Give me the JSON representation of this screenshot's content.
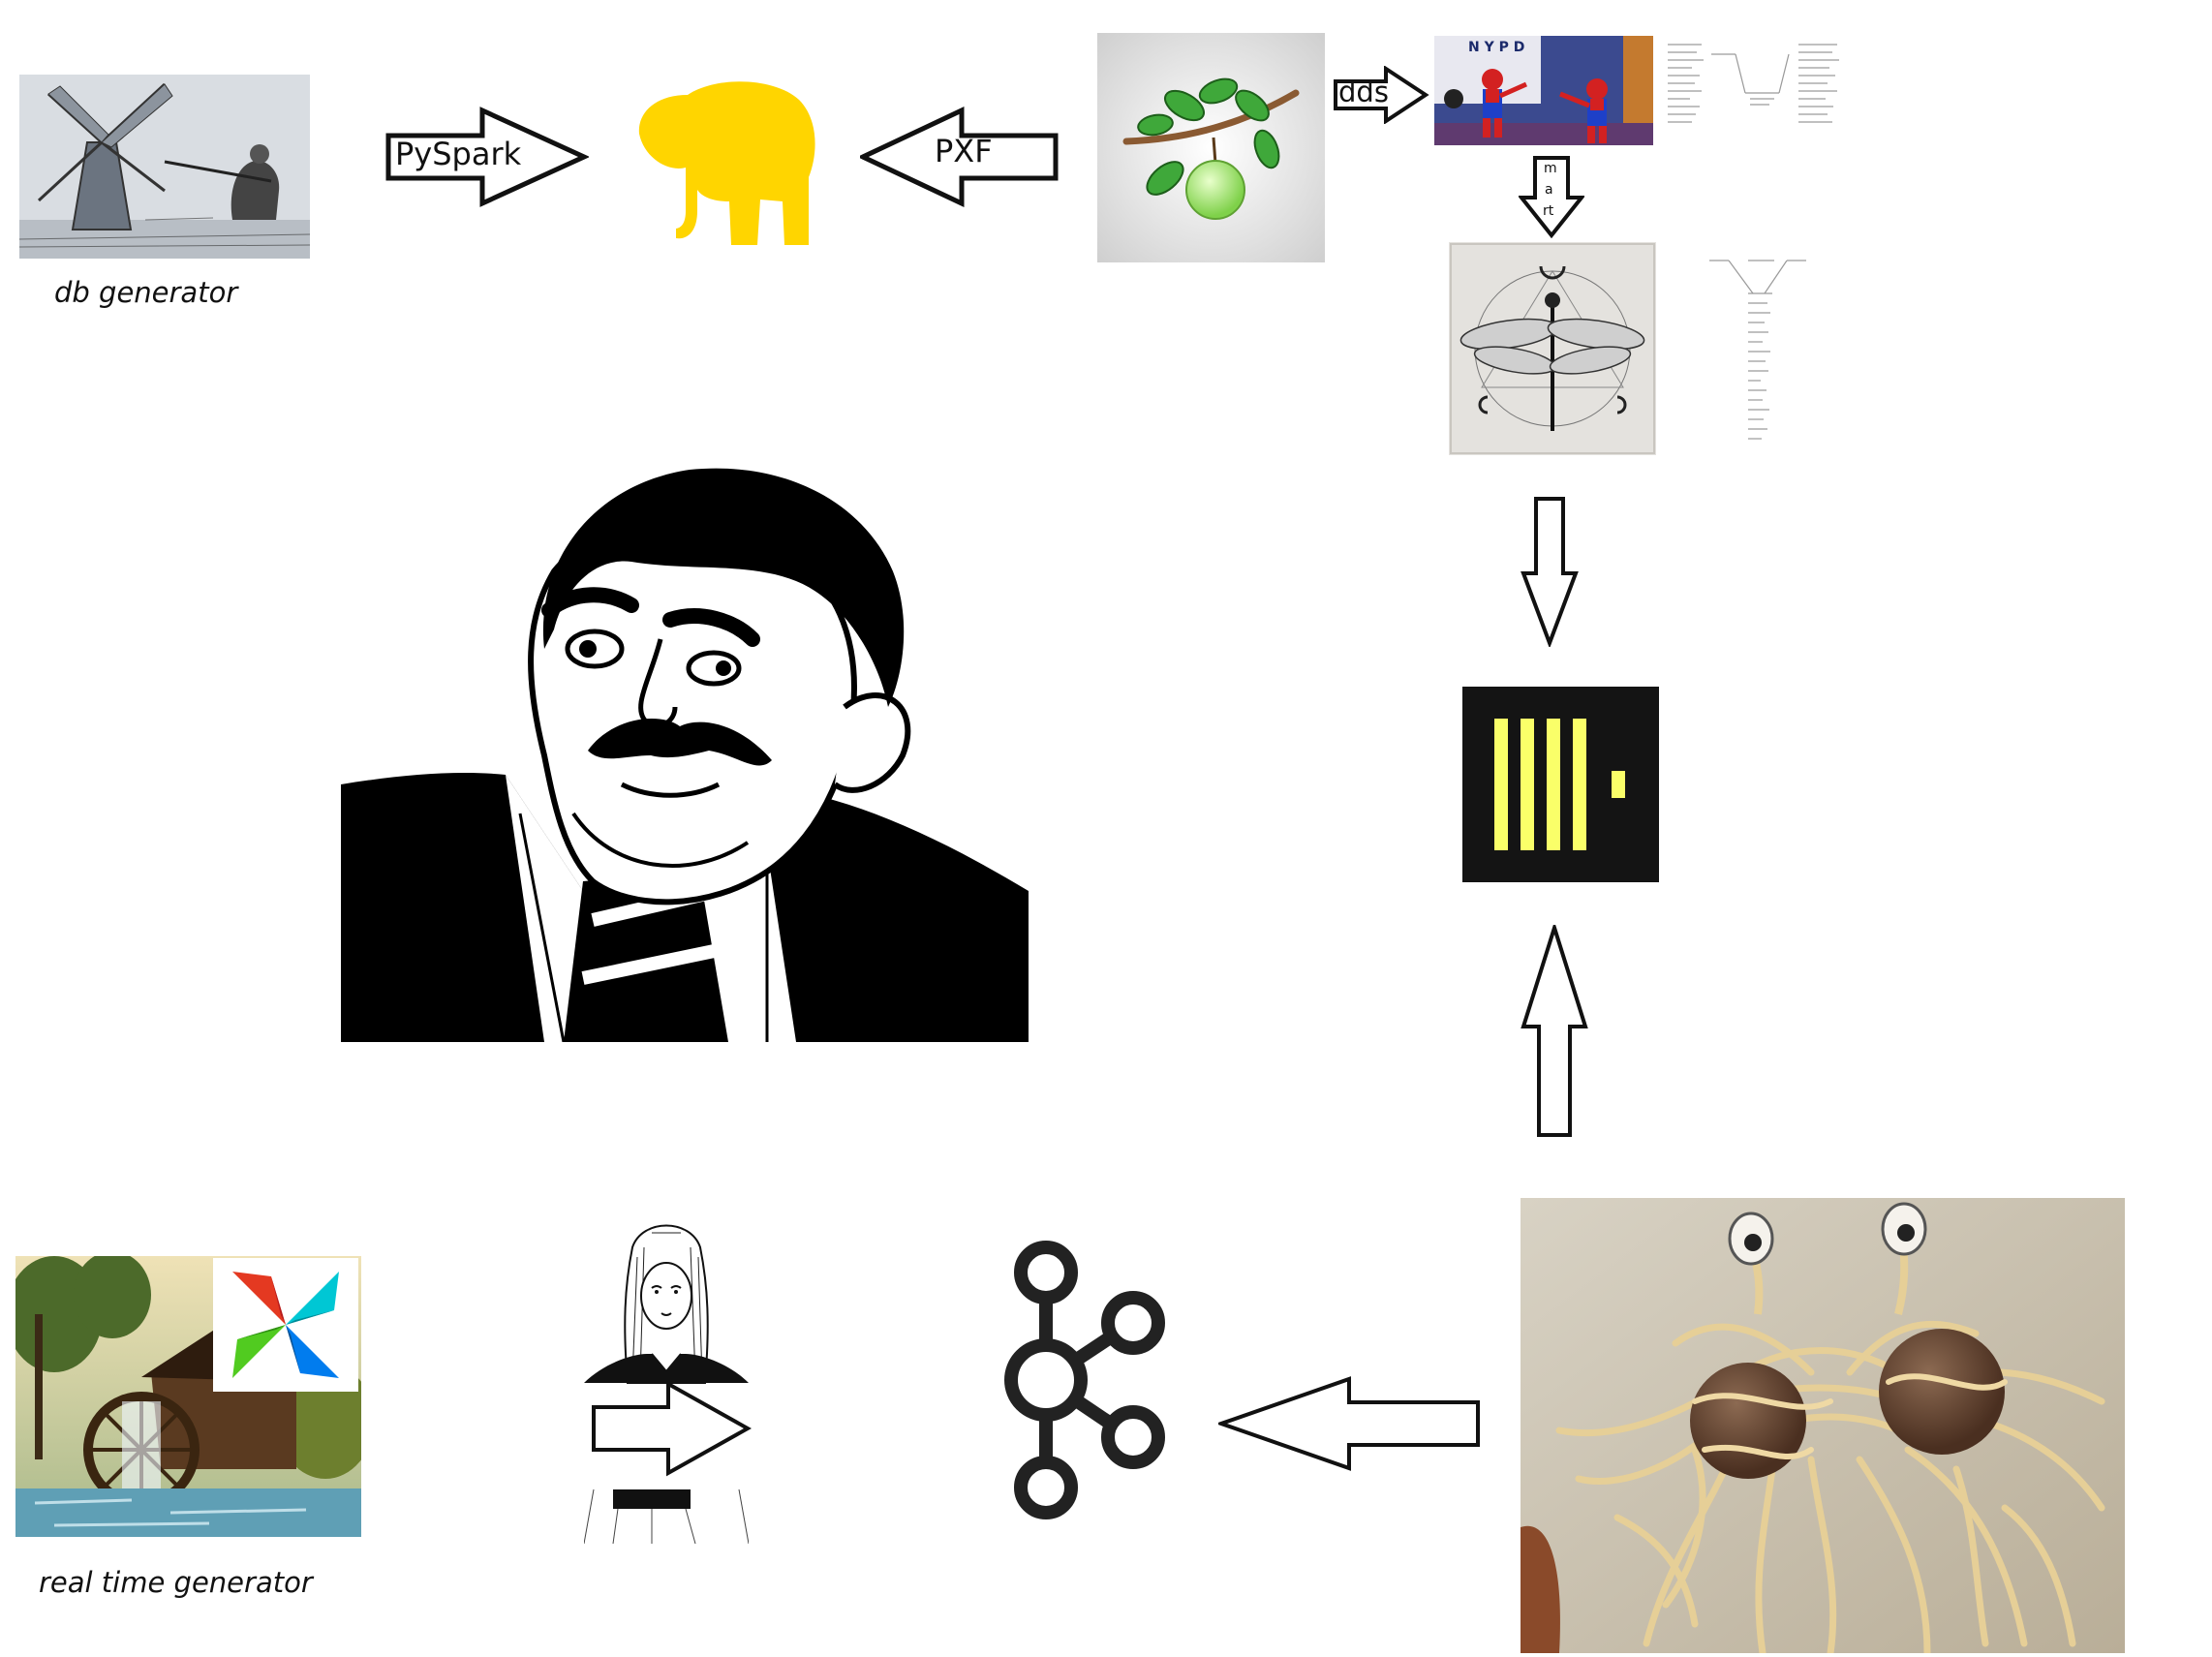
{
  "diagram": {
    "labels": {
      "db_generator": "db generator",
      "real_time_generator": "real time generator"
    },
    "arrows": {
      "pyspark": "PySpark",
      "pxf": "PXF",
      "dds": "dds",
      "mart_m": "m",
      "mart_a": "a",
      "mart_rt": "rt"
    },
    "nodes": {
      "windmill": "windmill-sketch",
      "elephant": "yellow-elephant",
      "apple_branch": "apple-branch",
      "spiderman_meme": "spiderman-pointing",
      "dragonfly": "dragonfly-print",
      "clickhouse": "clickhouse-logo",
      "meme_face": "meme-face",
      "airflow_painting": "watermill-painting-with-airflow-logo",
      "girl_sketch": "girl-sketch",
      "kafka": "kafka-logo",
      "spaghetti_monster": "flying-spaghetti-monster"
    },
    "colors": {
      "elephant": "#FFD500",
      "clickhouse_bg": "#141414",
      "clickhouse_bars": "#FAFF69",
      "apple": "#9BE36B",
      "leaf": "#3FA83A",
      "airflow_red": "#E43921",
      "airflow_teal": "#00C7D4",
      "airflow_green": "#017CEE"
    }
  }
}
